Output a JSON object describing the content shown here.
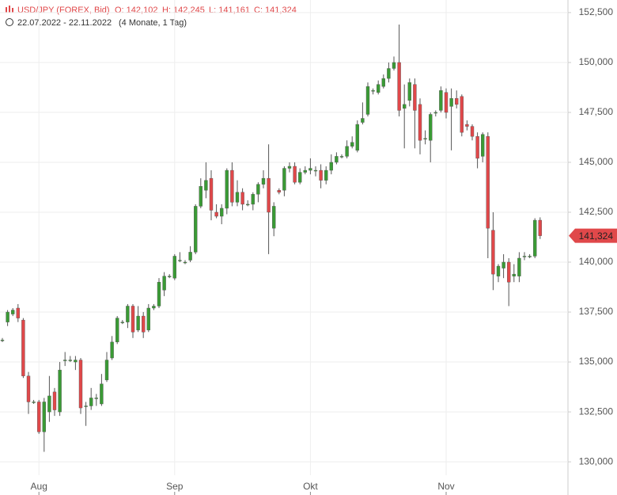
{
  "chart_data": {
    "type": "candlestick",
    "title": "USD/JPY (FOREX, Bid)",
    "ohlc_labels": [
      "O: 142,102",
      "H: 142,245",
      "L: 141,161",
      "C: 141,324"
    ],
    "subtitle": "22.07.2022 - 22.11.2022",
    "period": "(4 Monate, 1 Tag)",
    "last_label": "141,324",
    "up_color": "#3a9a35",
    "down_color": "#e0484a",
    "grid": true,
    "ylim": [
      129.33,
      153.13
    ],
    "yticks": [
      {
        "value": 130,
        "label": "130,000"
      },
      {
        "value": 132.5,
        "label": "132,500"
      },
      {
        "value": 135,
        "label": "135,000"
      },
      {
        "value": 137.5,
        "label": "137,500"
      },
      {
        "value": 140,
        "label": "140,000"
      },
      {
        "value": 142.5,
        "label": "142,500"
      },
      {
        "value": 145,
        "label": "145,000"
      },
      {
        "value": 147.5,
        "label": "147,500"
      },
      {
        "value": 150,
        "label": "150,000"
      },
      {
        "value": 152.5,
        "label": "152,500"
      }
    ],
    "categories": [
      null,
      null,
      null,
      null,
      null,
      null,
      null,
      "Aug",
      null,
      null,
      null,
      null,
      null,
      null,
      null,
      null,
      null,
      null,
      null,
      null,
      null,
      null,
      null,
      null,
      null,
      null,
      null,
      null,
      null,
      null,
      null,
      null,
      null,
      "Sep",
      null,
      null,
      null,
      null,
      null,
      null,
      null,
      null,
      null,
      null,
      null,
      null,
      null,
      null,
      null,
      null,
      null,
      null,
      null,
      null,
      null,
      null,
      null,
      null,
      null,
      "Okt",
      null,
      null,
      null,
      null,
      null,
      null,
      null,
      null,
      null,
      null,
      null,
      null,
      null,
      null,
      null,
      null,
      null,
      null,
      null,
      null,
      null,
      null,
      null,
      null,
      null,
      "Nov",
      null,
      null,
      null,
      null,
      null,
      null,
      null,
      null,
      null,
      null,
      null,
      null,
      null,
      null,
      null,
      null,
      null,
      null
    ],
    "open": [
      136.1,
      137.0,
      137.4,
      137.7,
      137.1,
      134.3,
      133.0,
      133.0,
      131.5,
      132.5,
      133.5,
      132.5,
      135.1,
      135.1,
      135.0,
      135.1,
      132.8,
      132.8,
      133.2,
      132.9,
      134.1,
      135.2,
      136.0,
      137.0,
      137.0,
      137.8,
      136.6,
      137.3,
      136.6,
      137.7,
      137.8,
      138.6,
      139.3,
      139.2,
      140.1,
      140.0,
      140.1,
      140.5,
      142.8,
      143.6,
      144.2,
      142.5,
      142.3,
      142.7,
      144.6,
      143.0,
      143.5,
      142.9,
      142.9,
      143.4,
      143.9,
      144.2,
      141.7,
      143.6,
      143.6,
      144.7,
      144.8,
      144.0,
      144.5,
      144.6,
      144.6,
      144.6,
      144.1,
      144.6,
      145.0,
      145.3,
      145.3,
      145.8,
      145.6,
      147.0,
      147.4,
      148.6,
      148.5,
      148.8,
      149.2,
      149.7,
      150.0,
      147.7,
      148.1,
      148.9,
      147.9,
      146.2,
      146.1,
      147.5,
      147.6,
      148.5,
      147.8,
      148.2,
      148.3,
      146.9,
      146.8,
      146.3,
      145.3,
      146.3,
      141.6,
      139.3,
      139.7,
      140.0,
      139.3,
      139.3,
      140.3,
      140.3,
      140.3,
      142.102
    ],
    "high": [
      136.2,
      137.6,
      137.7,
      137.9,
      137.2,
      134.5,
      133.1,
      133.1,
      133.2,
      134.3,
      133.7,
      135.0,
      135.5,
      135.3,
      135.3,
      135.2,
      133.0,
      133.7,
      133.4,
      134.4,
      135.5,
      136.3,
      137.3,
      137.1,
      137.9,
      137.9,
      137.8,
      137.5,
      137.9,
      137.9,
      139.2,
      139.5,
      139.4,
      140.4,
      140.5,
      140.1,
      140.8,
      142.9,
      144.2,
      145.0,
      144.6,
      142.9,
      142.9,
      144.7,
      145.0,
      144.1,
      143.7,
      143.1,
      143.5,
      144.0,
      144.6,
      145.9,
      143.0,
      143.7,
      144.8,
      145.0,
      145.0,
      144.7,
      144.8,
      145.2,
      144.8,
      144.9,
      144.8,
      145.4,
      145.5,
      145.4,
      146.1,
      146.3,
      147.1,
      148.0,
      149.0,
      148.7,
      149.1,
      149.4,
      150.0,
      150.3,
      151.9,
      148.9,
      149.2,
      149.2,
      148.2,
      146.6,
      147.5,
      147.6,
      148.8,
      148.7,
      148.7,
      148.6,
      148.4,
      147.1,
      146.9,
      146.5,
      146.5,
      146.5,
      142.5,
      139.9,
      140.4,
      140.2,
      139.9,
      140.5,
      140.5,
      140.4,
      142.2,
      142.245
    ],
    "low": [
      136.0,
      136.8,
      137.3,
      137.0,
      134.2,
      132.4,
      132.9,
      131.4,
      130.5,
      132.0,
      132.3,
      132.3,
      134.8,
      135.0,
      134.6,
      132.4,
      131.8,
      132.6,
      132.8,
      132.8,
      134.0,
      135.1,
      135.9,
      136.9,
      136.7,
      136.2,
      136.5,
      136.2,
      136.5,
      137.6,
      137.7,
      138.3,
      139.2,
      139.1,
      140.0,
      139.9,
      140.0,
      140.4,
      142.7,
      143.2,
      142.1,
      142.2,
      141.9,
      142.4,
      142.8,
      142.8,
      142.6,
      142.8,
      142.6,
      143.0,
      143.7,
      140.4,
      141.3,
      143.4,
      143.3,
      144.5,
      143.9,
      143.9,
      144.4,
      144.4,
      144.3,
      143.7,
      143.9,
      144.4,
      144.9,
      145.2,
      145.2,
      145.7,
      145.5,
      146.9,
      147.3,
      148.4,
      148.4,
      148.7,
      149.0,
      149.6,
      147.3,
      145.7,
      147.8,
      145.7,
      145.4,
      145.9,
      145.0,
      147.3,
      147.5,
      147.2,
      145.6,
      147.7,
      146.3,
      146.6,
      146.1,
      144.7,
      145.0,
      140.2,
      138.6,
      139.0,
      139.2,
      137.8,
      139.0,
      139.0,
      140.1,
      140.2,
      140.2,
      141.161
    ],
    "close": [
      136.1,
      137.5,
      137.6,
      137.2,
      134.3,
      133.0,
      133.0,
      131.5,
      133.0,
      133.3,
      132.6,
      134.6,
      135.1,
      135.1,
      135.1,
      132.7,
      132.8,
      133.2,
      133.2,
      133.9,
      135.1,
      136.0,
      137.2,
      137.0,
      137.8,
      136.5,
      137.3,
      136.5,
      137.7,
      137.8,
      139.0,
      139.3,
      139.3,
      140.3,
      140.1,
      140.0,
      140.5,
      142.8,
      143.8,
      144.1,
      142.6,
      142.3,
      142.7,
      144.6,
      143.0,
      143.5,
      142.9,
      142.9,
      143.4,
      143.9,
      144.2,
      142.5,
      142.8,
      143.5,
      144.7,
      144.8,
      144.0,
      144.5,
      144.6,
      144.7,
      144.6,
      144.1,
      144.6,
      145.0,
      145.3,
      145.3,
      145.8,
      146.0,
      146.9,
      147.2,
      148.8,
      148.6,
      148.9,
      149.2,
      149.7,
      150.0,
      147.6,
      147.9,
      149.0,
      147.6,
      146.1,
      146.2,
      147.4,
      147.5,
      148.6,
      147.5,
      148.2,
      147.9,
      146.5,
      146.8,
      146.3,
      145.2,
      146.4,
      141.7,
      139.4,
      139.8,
      140.0,
      139.0,
      139.4,
      140.2,
      140.3,
      140.3,
      142.1,
      141.324
    ]
  }
}
